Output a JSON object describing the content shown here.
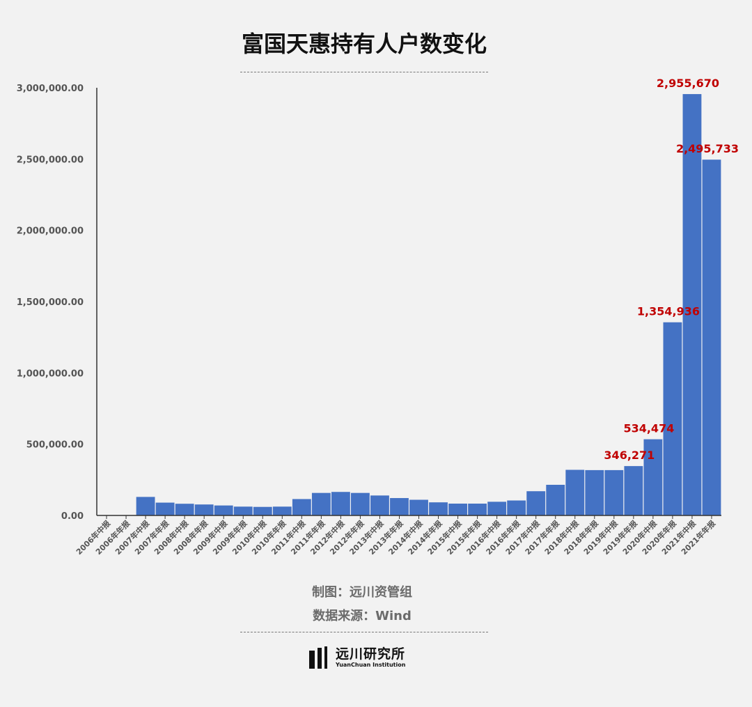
{
  "title": "富国天惠持有人户数变化",
  "credits": {
    "maker": "制图：远川资管组",
    "source": "数据来源：Wind"
  },
  "logo": {
    "cn": "远川研究所",
    "en": "YuanChuan Institution"
  },
  "colors": {
    "bar": "#4472c4",
    "label": "#c00000",
    "axis": "#333333",
    "tick": "#555555"
  },
  "chart_data": {
    "type": "bar",
    "title": "富国天惠持有人户数变化",
    "xlabel": "",
    "ylabel": "",
    "ylim": [
      0,
      3000000
    ],
    "yticks": [
      0,
      500000,
      1000000,
      1500000,
      2000000,
      2500000,
      3000000
    ],
    "ytick_labels": [
      "0.00",
      "500,000.00",
      "1,000,000.00",
      "1,500,000.00",
      "2,000,000.00",
      "2,500,000.00",
      "3,000,000.00"
    ],
    "categories": [
      "2006年中报",
      "2006年年报",
      "2007年中报",
      "2007年年报",
      "2008年中报",
      "2008年年报",
      "2009年中报",
      "2009年年报",
      "2010年中报",
      "2010年年报",
      "2011年中报",
      "2011年年报",
      "2012年中报",
      "2012年年报",
      "2013年中报",
      "2013年年报",
      "2014年中报",
      "2014年年报",
      "2015年中报",
      "2015年年报",
      "2016年中报",
      "2016年年报",
      "2017年中报",
      "2017年年报",
      "2018年中报",
      "2018年年报",
      "2019年中报",
      "2019年年报",
      "2020年中报",
      "2020年年报",
      "2021年中报",
      "2021年年报"
    ],
    "values": [
      0,
      0,
      130000,
      90000,
      82000,
      77000,
      70000,
      62000,
      60000,
      62000,
      115000,
      158000,
      165000,
      158000,
      140000,
      122000,
      110000,
      92000,
      83000,
      83000,
      96000,
      105000,
      170000,
      215000,
      320000,
      318000,
      318000,
      346271,
      534474,
      1354936,
      2955670,
      2495733
    ],
    "data_labels": [
      {
        "index": 27,
        "text": "346,271"
      },
      {
        "index": 28,
        "text": "534,474"
      },
      {
        "index": 29,
        "text": "1,354,936"
      },
      {
        "index": 30,
        "text": "2,955,670"
      },
      {
        "index": 31,
        "text": "2,495,733"
      }
    ],
    "grid": false,
    "legend": "none"
  }
}
